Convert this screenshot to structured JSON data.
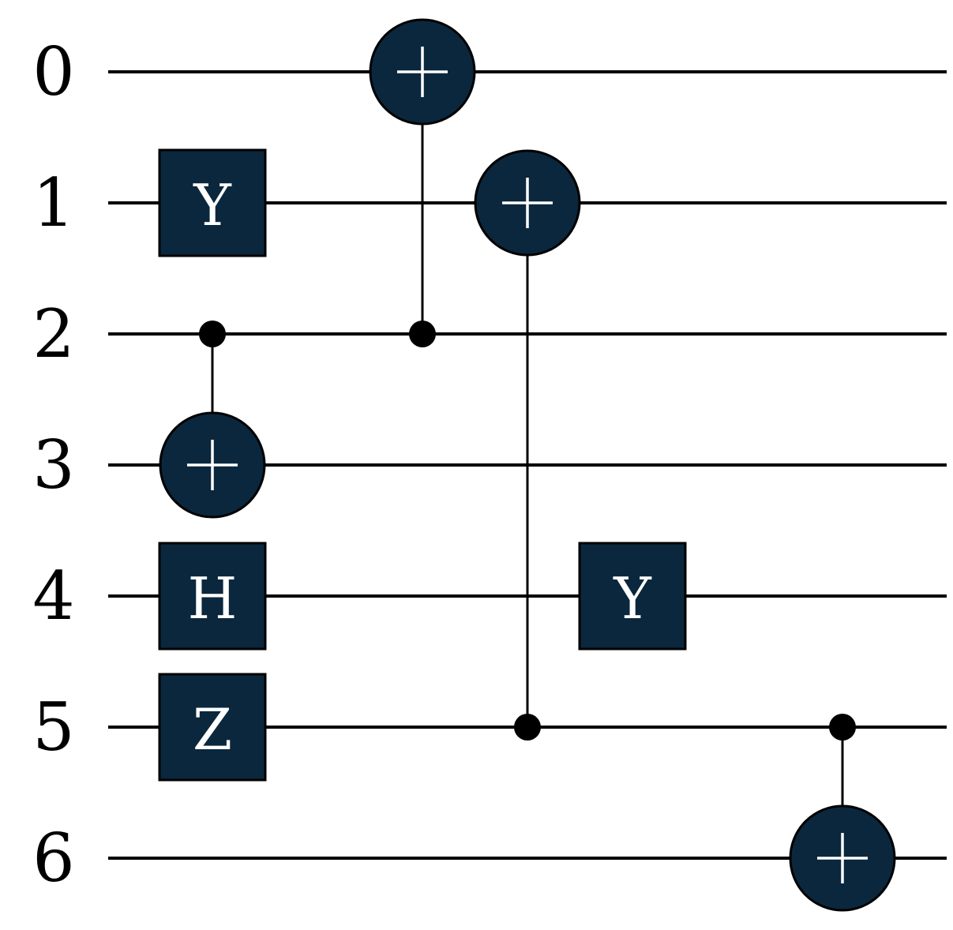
{
  "diagram": {
    "type": "quantum-circuit",
    "gate_fill": "#0b273d",
    "wire_color": "#000000",
    "qubits": [
      "0",
      "1",
      "2",
      "3",
      "4",
      "5",
      "6"
    ],
    "gates": [
      {
        "type": "single",
        "label": "Y",
        "qubit": 1,
        "step": 0
      },
      {
        "type": "single",
        "label": "H",
        "qubit": 4,
        "step": 0
      },
      {
        "type": "single",
        "label": "Z",
        "qubit": 5,
        "step": 0
      },
      {
        "type": "cnot",
        "control": 2,
        "target": 3,
        "step": 0
      },
      {
        "type": "cnot",
        "control": 2,
        "target": 0,
        "step": 2
      },
      {
        "type": "cnot",
        "control": 5,
        "target": 1,
        "step": 3
      },
      {
        "type": "single",
        "label": "Y",
        "qubit": 4,
        "step": 4
      },
      {
        "type": "cnot",
        "control": 5,
        "target": 6,
        "step": 6
      }
    ]
  }
}
